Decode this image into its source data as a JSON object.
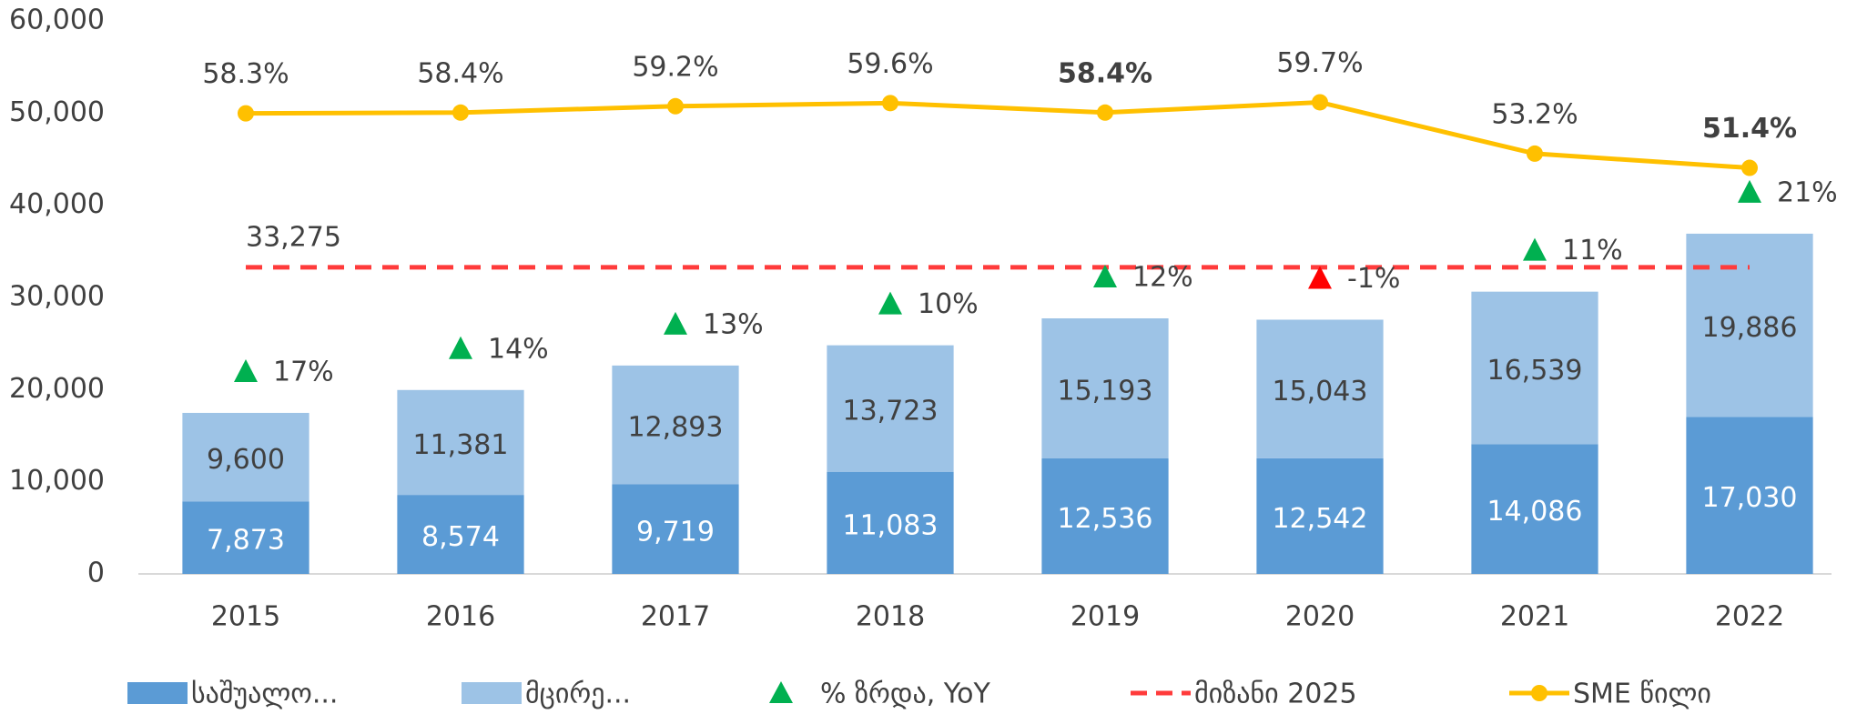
{
  "chart_data": {
    "type": "bar",
    "categories": [
      "2015",
      "2016",
      "2017",
      "2018",
      "2019",
      "2020",
      "2021",
      "2022"
    ],
    "series": [
      {
        "name": "საშუალო...",
        "color": "#5b9bd5",
        "label_color": "#ffffff",
        "values": [
          7873,
          8574,
          9719,
          11083,
          12536,
          12542,
          14086,
          17030
        ],
        "value_labels": [
          "7,873",
          "8,574",
          "9,719",
          "11,083",
          "12,536",
          "12,542",
          "14,086",
          "17,030"
        ]
      },
      {
        "name": "მცირე...",
        "color": "#9dc3e6",
        "label_color": "#404040",
        "values": [
          9600,
          11381,
          12893,
          13723,
          15193,
          15043,
          16539,
          19886
        ],
        "value_labels": [
          "9,600",
          "11,381",
          "12,893",
          "13,723",
          "15,193",
          "15,043",
          "16,539",
          "19,886"
        ]
      }
    ],
    "growth": {
      "name": "% ზრდა, YoY",
      "up_color": "#00b050",
      "down_color": "#ff0000",
      "values": [
        17,
        14,
        13,
        10,
        12,
        -1,
        11,
        21
      ],
      "value_labels": [
        "17%",
        "14%",
        "13%",
        "10%",
        "12%",
        "-1%",
        "11%",
        "21%"
      ]
    },
    "target": {
      "name": "მიზანი 2025",
      "color": "#ff3b3b",
      "value": 33275,
      "value_label": "33,275"
    },
    "share": {
      "name": "SME წილი",
      "color": "#ffc000",
      "axis": "y2",
      "values": [
        58.3,
        58.4,
        59.2,
        59.6,
        58.4,
        59.7,
        53.2,
        51.4
      ],
      "value_labels": [
        "58.3%",
        "58.4%",
        "59.2%",
        "59.6%",
        "58.4%",
        "59.7%",
        "53.2%",
        "51.4%"
      ],
      "bold_labels": [
        4,
        7
      ]
    },
    "ylim": [
      0,
      60000
    ],
    "yticks": [
      {
        "value": 0,
        "label": "0"
      },
      {
        "value": 10000,
        "label": "10,000"
      },
      {
        "value": 20000,
        "label": "20,000"
      },
      {
        "value": 30000,
        "label": "30,000"
      },
      {
        "value": 40000,
        "label": "40,000"
      },
      {
        "value": 50000,
        "label": "50,000"
      },
      {
        "value": 60000,
        "label": "60,000"
      }
    ],
    "y2lim": [
      0,
      70
    ],
    "legend": "bottom"
  }
}
